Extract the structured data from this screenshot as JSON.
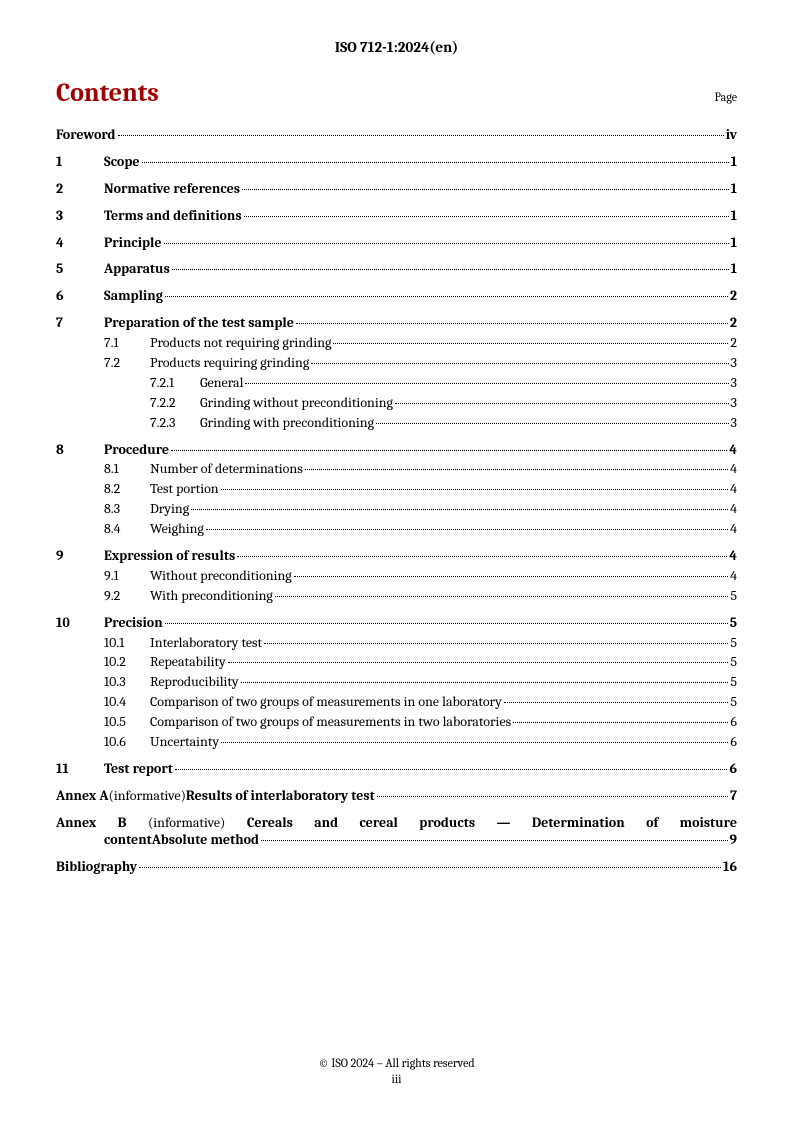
{
  "header": "ISO 712-1:2024(en)",
  "title": "Contents",
  "page_label": "Page",
  "footer_copyright": "© ISO 2024 – All rights reserved",
  "footer_page": "iii",
  "colors": {
    "title": "#a00000",
    "text": "#000000",
    "background": "#ffffff"
  },
  "entries": {
    "foreword": {
      "label": "Foreword",
      "page": "iv"
    },
    "s1": {
      "num": "1",
      "label": "Scope",
      "page": "1"
    },
    "s2": {
      "num": "2",
      "label": "Normative references",
      "page": "1"
    },
    "s3": {
      "num": "3",
      "label": "Terms and definitions",
      "page": "1"
    },
    "s4": {
      "num": "4",
      "label": "Principle",
      "page": "1"
    },
    "s5": {
      "num": "5",
      "label": "Apparatus",
      "page": "1"
    },
    "s6": {
      "num": "6",
      "label": "Sampling",
      "page": "2"
    },
    "s7": {
      "num": "7",
      "label": "Preparation of the test sample",
      "page": "2"
    },
    "s7_1": {
      "num": "7.1",
      "label": "Products not requiring grinding",
      "page": "2"
    },
    "s7_2": {
      "num": "7.2",
      "label": "Products requiring grinding",
      "page": "3"
    },
    "s7_2_1": {
      "num": "7.2.1",
      "label": "General",
      "page": "3"
    },
    "s7_2_2": {
      "num": "7.2.2",
      "label": "Grinding without preconditioning",
      "page": "3"
    },
    "s7_2_3": {
      "num": "7.2.3",
      "label": "Grinding with preconditioning",
      "page": "3"
    },
    "s8": {
      "num": "8",
      "label": "Procedure",
      "page": "4"
    },
    "s8_1": {
      "num": "8.1",
      "label": "Number of determinations",
      "page": "4"
    },
    "s8_2": {
      "num": "8.2",
      "label": "Test portion",
      "page": "4"
    },
    "s8_3": {
      "num": "8.3",
      "label": "Drying",
      "page": "4"
    },
    "s8_4": {
      "num": "8.4",
      "label": "Weighing",
      "page": "4"
    },
    "s9": {
      "num": "9",
      "label": "Expression of results",
      "page": "4"
    },
    "s9_1": {
      "num": "9.1",
      "label": "Without preconditioning",
      "page": "4"
    },
    "s9_2": {
      "num": "9.2",
      "label": "With preconditioning",
      "page": "5"
    },
    "s10": {
      "num": "10",
      "label": "Precision",
      "page": "5"
    },
    "s10_1": {
      "num": "10.1",
      "label": "Interlaboratory test",
      "page": "5"
    },
    "s10_2": {
      "num": "10.2",
      "label": "Repeatability",
      "page": "5"
    },
    "s10_3": {
      "num": "10.3",
      "label": "Reproducibility",
      "page": "5"
    },
    "s10_4": {
      "num": "10.4",
      "label": "Comparison of two groups of measurements in one laboratory",
      "page": "5"
    },
    "s10_5": {
      "num": "10.5",
      "label": "Comparison of two groups of measurements in two laboratories",
      "page": "6"
    },
    "s10_6": {
      "num": "10.6",
      "label": "Uncertainty",
      "page": "6"
    },
    "s11": {
      "num": "11",
      "label": "Test report",
      "page": "6"
    },
    "annexA": {
      "prefix": "Annex A",
      "informative": " (informative)  ",
      "label": "Results of interlaboratory test",
      "page": "7"
    },
    "annexB": {
      "prefix": "Annex B",
      "informative": " (informative) ",
      "line1_tail": "Cereals and cereal products — Determination of moisture",
      "line2": "contentAbsolute method",
      "page": "9"
    },
    "bibliography": {
      "label": "Bibliography",
      "page": "16"
    }
  }
}
